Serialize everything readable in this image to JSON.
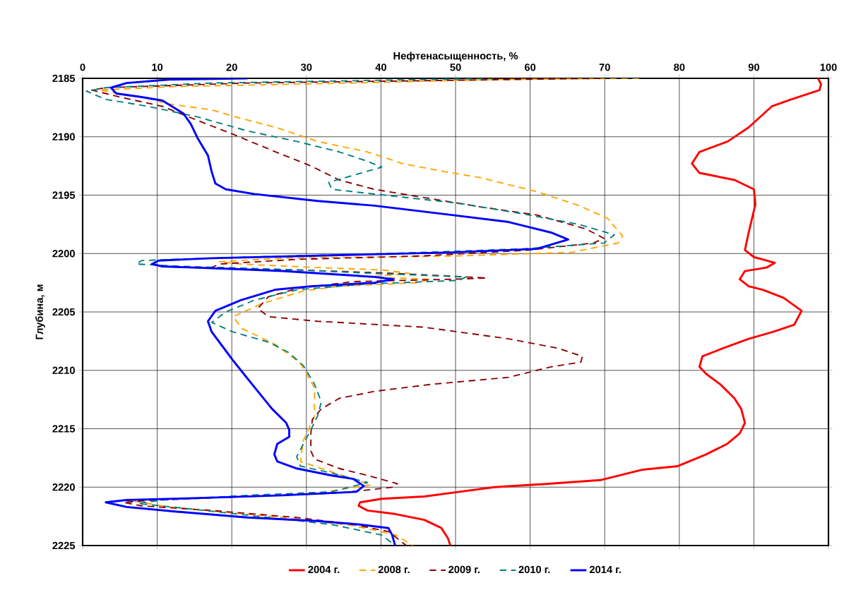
{
  "chart_data": {
    "type": "line",
    "xlabel": "Нефтенасыщенность, %",
    "ylabel": "Глубина, м",
    "xlim": [
      0,
      100
    ],
    "xticks": [
      0,
      10,
      20,
      30,
      40,
      50,
      60,
      70,
      80,
      90,
      100
    ],
    "ylim": [
      2225,
      2185
    ],
    "yticks": [
      2185,
      2190,
      2195,
      2200,
      2205,
      2210,
      2215,
      2220,
      2225
    ],
    "grid": true,
    "legend": "bottom",
    "series": [
      {
        "name": "2004 г.",
        "color": "#ff0000",
        "line_style": "solid",
        "x": [
          98.6,
          99,
          98.8,
          95,
          92.4,
          89.3,
          86.5,
          82.7,
          81.7,
          82.7,
          87.4,
          90,
          90.2,
          89.3,
          88.8,
          90,
          91.7,
          92.8,
          91.7,
          88.8,
          88.1,
          89.3,
          91.2,
          94,
          96.4,
          95.4,
          92.6,
          89.3,
          85.5,
          83.1,
          82.7,
          83.6,
          85.5,
          87.4,
          88.3,
          88.8,
          88.1,
          86.4,
          83.6,
          79.8,
          75.1,
          69.4,
          62.8,
          55.2,
          50.5,
          45.8,
          40.1,
          37.2,
          37,
          38.2,
          41.9,
          45.8,
          48.1,
          49,
          49.3
        ],
        "values": [
          2185,
          2185.5,
          2186,
          2186.8,
          2187.4,
          2189.2,
          2190.4,
          2191.3,
          2192.3,
          2193.1,
          2193.7,
          2194.5,
          2195.8,
          2198.2,
          2199.7,
          2200.3,
          2200.6,
          2200.8,
          2201.2,
          2201.5,
          2202.2,
          2202.8,
          2203.1,
          2203.8,
          2204.9,
          2206.1,
          2206.7,
          2207.3,
          2208.2,
          2208.8,
          2209.7,
          2210.3,
          2211.2,
          2212.4,
          2213.3,
          2214.5,
          2215.4,
          2216.3,
          2217.2,
          2218.2,
          2218.5,
          2219.4,
          2219.7,
          2220,
          2220.4,
          2220.8,
          2221,
          2221.3,
          2221.6,
          2222,
          2222.3,
          2222.8,
          2223.5,
          2224.4,
          2225
        ]
      },
      {
        "name": "2008 г.",
        "color": "#ffa500",
        "line_style": "dashed",
        "x": [
          74.6,
          55.2,
          36.3,
          12.6,
          2.2,
          8,
          11.6,
          17.3,
          21.1,
          25.9,
          31.5,
          38.2,
          42.9,
          48.6,
          53.3,
          60.9,
          66.6,
          70.4,
          72.4,
          71.8,
          65.5,
          50.5,
          26.8,
          18.3,
          21.1,
          31.5,
          40.1,
          43.8,
          38.2,
          46.7,
          44.8,
          34.4,
          29.6,
          24,
          20.2,
          21.3,
          25.9,
          29.2,
          31.1,
          31.1,
          29.6,
          29.2,
          33.4,
          38.7,
          31.5,
          17.3,
          6.9,
          11.6,
          26.8,
          36.3,
          42,
          44.3
        ],
        "values": [
          2185,
          2185.1,
          2185.4,
          2185.7,
          2186,
          2186.6,
          2187.2,
          2187.7,
          2188.4,
          2189.2,
          2190.4,
          2191.3,
          2192.3,
          2193,
          2193.5,
          2194.7,
          2195.9,
          2197,
          2198.5,
          2199.1,
          2199.9,
          2200.2,
          2200.4,
          2200.7,
          2200.9,
          2201.2,
          2201.4,
          2201.7,
          2202,
          2202.2,
          2202.5,
          2202.8,
          2203.2,
          2204.3,
          2205.4,
          2206.4,
          2207.8,
          2209.4,
          2211.5,
          2213.9,
          2216,
          2217.8,
          2218.7,
          2219.8,
          2220.5,
          2220.9,
          2221.2,
          2221.7,
          2222.6,
          2223.3,
          2224.1,
          2225
        ]
      },
      {
        "name": "2009 г.",
        "color": "#8b0000",
        "line_style": "dashed",
        "x": [
          69.4,
          45.7,
          22.1,
          3.1,
          1.2,
          5,
          10.7,
          15.4,
          20.2,
          25.9,
          30.6,
          34.4,
          39.1,
          45.7,
          53.3,
          60.9,
          67.5,
          69.9,
          68.5,
          59.9,
          45.7,
          28.7,
          18.3,
          17.3,
          28.7,
          41.9,
          51.4,
          54.2,
          49.5,
          36.3,
          28.7,
          24.9,
          23.5,
          24.9,
          31.5,
          45.7,
          57.1,
          63.7,
          67,
          66.8,
          62.8,
          57.1,
          46.7,
          39.1,
          34.4,
          32,
          30.8,
          30.6,
          30.6,
          31.1,
          34.4,
          38.2,
          42.2,
          41.7,
          34.4,
          22.1,
          9.8,
          5.5,
          7.9,
          17.3,
          28.7,
          36.3,
          41,
          43.4
        ],
        "values": [
          2185,
          2185.2,
          2185.4,
          2185.8,
          2186,
          2186.6,
          2187.4,
          2188.6,
          2189.8,
          2191.3,
          2192.5,
          2193.7,
          2194.5,
          2195.2,
          2196,
          2196.7,
          2197.9,
          2198.7,
          2199.1,
          2199.7,
          2200.2,
          2200.5,
          2200.9,
          2201.2,
          2201.4,
          2201.7,
          2202,
          2202.1,
          2202.2,
          2202.4,
          2203,
          2203.7,
          2204.7,
          2205.4,
          2205.8,
          2206.3,
          2207.3,
          2208.1,
          2208.8,
          2209.3,
          2209.7,
          2210.6,
          2211.2,
          2211.8,
          2212.4,
          2213.3,
          2214.2,
          2215.4,
          2216.9,
          2217.6,
          2218.4,
          2219,
          2219.7,
          2220,
          2220.5,
          2220.8,
          2221.1,
          2221.3,
          2221.6,
          2222,
          2222.6,
          2223.2,
          2223.8,
          2225
        ]
      },
      {
        "name": "2010 г.",
        "color": "#008080",
        "line_style": "dashed",
        "x": [
          55.2,
          36.3,
          17.3,
          3.1,
          0.5,
          3.1,
          8.8,
          15.4,
          22.1,
          28.7,
          34.4,
          38.2,
          40.1,
          36.3,
          33,
          33.4,
          41.9,
          50.5,
          59,
          66.5,
          71.3,
          69.9,
          59,
          41,
          22.1,
          7.9,
          7.2,
          13.5,
          28.7,
          39.1,
          51.4,
          50.5,
          38.2,
          28.7,
          23,
          19.2,
          17.3,
          20.1,
          25,
          27.7,
          29.6,
          31.1,
          32,
          31.5,
          30.6,
          29.6,
          28.7,
          29.2,
          33.4,
          38.2,
          33.4,
          22.1,
          10.7,
          7.4,
          13.5,
          24.9,
          33.4,
          40.1,
          41.9
        ],
        "values": [
          2185,
          2185.2,
          2185.4,
          2185.8,
          2186.1,
          2186.8,
          2187.4,
          2188.3,
          2189.5,
          2190.4,
          2191.3,
          2192.1,
          2192.6,
          2193.3,
          2193.9,
          2194.5,
          2195.1,
          2195.7,
          2196.6,
          2197.5,
          2198.4,
          2199.1,
          2199.6,
          2200,
          2200.3,
          2200.6,
          2200.9,
          2201.1,
          2201.4,
          2201.7,
          2202,
          2202.3,
          2202.6,
          2203.1,
          2204,
          2205,
          2205.9,
          2206.7,
          2207.6,
          2208.5,
          2209.6,
          2211.2,
          2212.7,
          2213.9,
          2215.1,
          2216.3,
          2217.4,
          2218.2,
          2218.8,
          2219.6,
          2220.4,
          2220.7,
          2221.1,
          2221.4,
          2221.8,
          2222.6,
          2223.2,
          2224.1,
          2225
        ]
      },
      {
        "name": "2014 г.",
        "color": "#0000ff",
        "line_style": "solid",
        "x": [
          22.1,
          11.6,
          5.9,
          3.8,
          4.5,
          7.9,
          10.7,
          13.5,
          14.5,
          15.4,
          16.8,
          17.3,
          17.8,
          19.2,
          23,
          31.5,
          39.1,
          49.5,
          57.1,
          62.8,
          65.1,
          60.9,
          49.5,
          30.6,
          17.3,
          10.2,
          9.3,
          10.7,
          19.2,
          26.8,
          39.1,
          41.7,
          39.1,
          30.6,
          25.8,
          21.2,
          17.8,
          16.8,
          17.3,
          18.7,
          20.1,
          21.6,
          23.5,
          25.4,
          27.3,
          27.7,
          27.7,
          26.1,
          25.7,
          26.1,
          28.7,
          33.4,
          36.3,
          37.7,
          36.7,
          26.8,
          17.3,
          5.9,
          3.1,
          5.9,
          12.6,
          22.1,
          31.5,
          37.2,
          41,
          41.5,
          41.9
        ],
        "values": [
          2185,
          2185.1,
          2185.4,
          2185.8,
          2186.3,
          2186.6,
          2186.9,
          2188,
          2188.9,
          2190.1,
          2191.6,
          2193,
          2194,
          2194.5,
          2194.9,
          2195.5,
          2195.9,
          2196.7,
          2197.3,
          2198.2,
          2198.8,
          2199.6,
          2199.9,
          2200.2,
          2200.4,
          2200.6,
          2200.9,
          2201.1,
          2201.3,
          2201.5,
          2202,
          2202.2,
          2202.5,
          2202.8,
          2203.1,
          2204,
          2204.9,
          2205.8,
          2206.7,
          2207.9,
          2209.1,
          2210.3,
          2211.8,
          2213.3,
          2214.5,
          2215.1,
          2215.7,
          2216.3,
          2217.2,
          2217.8,
          2218.4,
          2219,
          2219.3,
          2219.9,
          2220.4,
          2220.7,
          2220.9,
          2221.1,
          2221.3,
          2221.7,
          2222.1,
          2222.6,
          2222.9,
          2223.2,
          2223.5,
          2224.1,
          2225
        ]
      }
    ]
  }
}
